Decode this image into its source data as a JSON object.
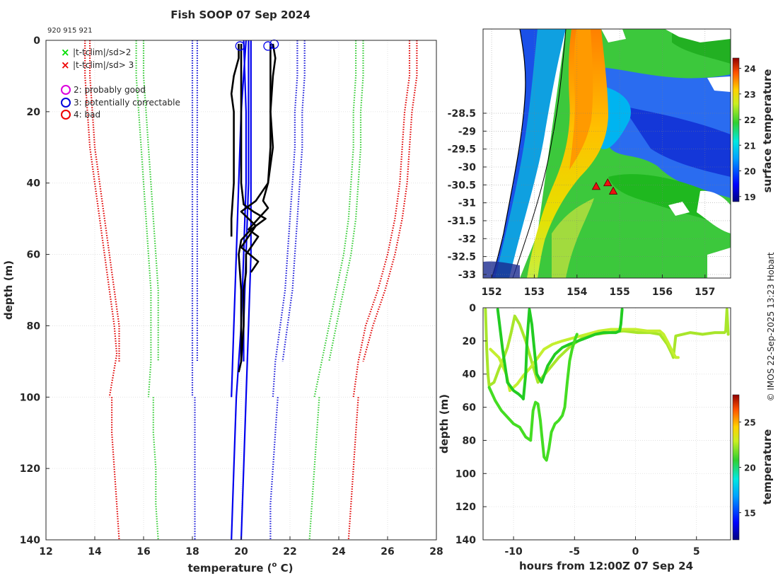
{
  "title": "Fish SOOP 07 Sep 2024",
  "station_ids": "920 915 921",
  "watermark": "© IMOS 22-Sep-2025 13:23 Hobart",
  "chart_data": [
    {
      "id": "profiles",
      "type": "line",
      "title": "Fish SOOP 07 Sep 2024",
      "xlabel": "temperature (",
      "xlabel_sup": "o",
      "xlabel_tail": " C)",
      "ylabel": "depth (m)",
      "xlim": [
        12,
        28
      ],
      "ylim": [
        140,
        0
      ],
      "xticks": [
        12,
        14,
        16,
        18,
        20,
        22,
        24,
        26,
        28
      ],
      "yticks": [
        0,
        20,
        40,
        60,
        80,
        100,
        120,
        140
      ],
      "legend": [
        {
          "marker": "x",
          "color": "#00dd00",
          "label": "|t-tclim|/sd>2"
        },
        {
          "marker": "x",
          "color": "#ee0000",
          "label": "|t-tclim|/sd> 3"
        },
        {
          "marker": "o",
          "color": "#dd00dd",
          "label": "2: probably good"
        },
        {
          "marker": "o",
          "color": "#0000dd",
          "label": "3: potentially correctable"
        },
        {
          "marker": "o",
          "color": "#ee0000",
          "label": "4: bad"
        }
      ],
      "climatology_envelopes": [
        {
          "color": "#e00000",
          "style": "dotted",
          "depth": [
            0,
            10,
            20,
            30,
            40,
            50,
            60,
            70,
            80,
            88,
            100
          ],
          "temp": [
            13.6,
            13.6,
            13.7,
            13.8,
            14.0,
            14.2,
            14.4,
            14.6,
            14.8,
            14.9,
            14.6
          ]
        },
        {
          "color": "#e00000",
          "style": "dotted",
          "depth": [
            0,
            10,
            20,
            30,
            40,
            50,
            60,
            70,
            80,
            90
          ],
          "temp": [
            13.8,
            13.8,
            13.9,
            14.0,
            14.2,
            14.4,
            14.6,
            14.8,
            15.0,
            15.0
          ]
        },
        {
          "color": "#e00000",
          "style": "dotted",
          "depth": [
            100,
            110,
            120,
            130,
            140
          ],
          "temp": [
            14.7,
            14.7,
            14.8,
            14.9,
            15.0
          ]
        },
        {
          "color": "#e00000",
          "style": "dotted",
          "depth": [
            0,
            10,
            20,
            30,
            40,
            50,
            60,
            70,
            80,
            90,
            100
          ],
          "temp": [
            26.9,
            26.9,
            26.7,
            26.6,
            26.5,
            26.3,
            26.0,
            25.6,
            25.1,
            24.8,
            24.6
          ]
        },
        {
          "color": "#e00000",
          "style": "dotted",
          "depth": [
            0,
            10,
            20,
            30,
            40,
            50,
            60,
            70,
            80,
            90
          ],
          "temp": [
            27.2,
            27.2,
            27.0,
            26.9,
            26.8,
            26.6,
            26.3,
            25.9,
            25.4,
            25.0
          ]
        },
        {
          "color": "#e00000",
          "style": "dotted",
          "depth": [
            100,
            110,
            120,
            130,
            140
          ],
          "temp": [
            24.8,
            24.7,
            24.6,
            24.5,
            24.4
          ]
        },
        {
          "color": "#33cc33",
          "style": "dotted",
          "depth": [
            0,
            10,
            20,
            30,
            40,
            50,
            60,
            70,
            80,
            90,
            100
          ],
          "temp": [
            15.7,
            15.7,
            15.8,
            15.9,
            16.0,
            16.1,
            16.2,
            16.3,
            16.3,
            16.3,
            16.2
          ]
        },
        {
          "color": "#33cc33",
          "style": "dotted",
          "depth": [
            0,
            10,
            20,
            30,
            40,
            50,
            60,
            70,
            80,
            90
          ],
          "temp": [
            16.0,
            16.0,
            16.1,
            16.2,
            16.3,
            16.4,
            16.5,
            16.6,
            16.6,
            16.6
          ]
        },
        {
          "color": "#33cc33",
          "style": "dotted",
          "depth": [
            100,
            110,
            120,
            130,
            140
          ],
          "temp": [
            16.4,
            16.4,
            16.5,
            16.5,
            16.6
          ]
        },
        {
          "color": "#33cc33",
          "style": "dotted",
          "depth": [
            0,
            10,
            20,
            30,
            40,
            50,
            60,
            70,
            80,
            90,
            100
          ],
          "temp": [
            24.7,
            24.7,
            24.6,
            24.6,
            24.5,
            24.4,
            24.2,
            23.9,
            23.6,
            23.3,
            23.0
          ]
        },
        {
          "color": "#33cc33",
          "style": "dotted",
          "depth": [
            0,
            10,
            20,
            30,
            40,
            50,
            60,
            70,
            80,
            90
          ],
          "temp": [
            25.0,
            25.0,
            24.9,
            24.9,
            24.8,
            24.7,
            24.5,
            24.2,
            23.9,
            23.6
          ]
        },
        {
          "color": "#33cc33",
          "style": "dotted",
          "depth": [
            100,
            110,
            120,
            130,
            140
          ],
          "temp": [
            23.2,
            23.1,
            23.0,
            22.9,
            22.8
          ]
        },
        {
          "color": "#1a1ad9",
          "style": "dotted",
          "depth": [
            0,
            10,
            20,
            30,
            40,
            50,
            60,
            70,
            80,
            90,
            100
          ],
          "temp": [
            18.0,
            18.0,
            18.0,
            18.0,
            18.0,
            18.0,
            18.0,
            18.0,
            18.0,
            18.0,
            18.0
          ]
        },
        {
          "color": "#1a1ad9",
          "style": "dotted",
          "depth": [
            0,
            10,
            20,
            30,
            40,
            50,
            60,
            70,
            80,
            90
          ],
          "temp": [
            18.2,
            18.2,
            18.2,
            18.2,
            18.2,
            18.2,
            18.2,
            18.2,
            18.2,
            18.2
          ]
        },
        {
          "color": "#1a1ad9",
          "style": "dotted",
          "depth": [
            100,
            110,
            120,
            130,
            140
          ],
          "temp": [
            18.1,
            18.1,
            18.1,
            18.1,
            18.1
          ]
        },
        {
          "color": "#1a1ad9",
          "style": "dotted",
          "depth": [
            0,
            10,
            20,
            30,
            40,
            50,
            60,
            70,
            80,
            90,
            100
          ],
          "temp": [
            22.3,
            22.3,
            22.2,
            22.2,
            22.1,
            22.0,
            21.9,
            21.8,
            21.6,
            21.4,
            21.3
          ]
        },
        {
          "color": "#1a1ad9",
          "style": "dotted",
          "depth": [
            0,
            10,
            20,
            30,
            40,
            50,
            60,
            70,
            80,
            90
          ],
          "temp": [
            22.6,
            22.6,
            22.5,
            22.5,
            22.4,
            22.3,
            22.2,
            22.1,
            21.9,
            21.7
          ]
        },
        {
          "color": "#1a1ad9",
          "style": "dotted",
          "depth": [
            100,
            110,
            120,
            130,
            140
          ],
          "temp": [
            21.5,
            21.4,
            21.3,
            21.2,
            21.2
          ]
        }
      ],
      "mean_profiles": [
        {
          "color": "#0000ee",
          "depth": [
            0,
            20,
            40,
            60,
            80,
            100,
            120,
            140
          ],
          "temp": [
            20.1,
            20.2,
            20.2,
            20.1,
            20.0,
            19.8,
            19.7,
            19.6
          ]
        },
        {
          "color": "#0000ee",
          "depth": [
            0,
            20,
            40,
            60,
            80,
            90
          ],
          "temp": [
            20.3,
            20.3,
            20.3,
            20.2,
            20.1,
            20.1
          ]
        },
        {
          "color": "#0000ee",
          "depth": [
            0,
            20,
            40,
            60,
            80,
            100,
            120,
            140
          ],
          "temp": [
            20.4,
            20.4,
            20.4,
            20.4,
            20.3,
            20.2,
            20.1,
            20.0
          ]
        },
        {
          "color": "#0000ee",
          "depth": [
            0,
            20,
            40,
            60,
            80,
            100
          ],
          "temp": [
            20.2,
            20.0,
            19.9,
            19.8,
            19.7,
            19.6
          ]
        }
      ],
      "observed_profiles": [
        {
          "color": "#000000",
          "depth": [
            1,
            5,
            10,
            15,
            20,
            30,
            40,
            50,
            55
          ],
          "temp": [
            19.9,
            19.9,
            19.7,
            19.6,
            19.7,
            19.7,
            19.7,
            19.6,
            19.6
          ]
        },
        {
          "color": "#000000",
          "depth": [
            1,
            10,
            20,
            30,
            40,
            46,
            48,
            50,
            53,
            56,
            60,
            70,
            80,
            90,
            93
          ],
          "temp": [
            20.0,
            20.0,
            20.0,
            20.0,
            20.0,
            20.1,
            20.5,
            21.0,
            20.4,
            20.0,
            19.9,
            20.0,
            20.0,
            20.0,
            19.9
          ]
        },
        {
          "color": "#000000",
          "depth": [
            1,
            5,
            10,
            20,
            30,
            40,
            45,
            47,
            50,
            53,
            55,
            60,
            65,
            70,
            80,
            90
          ],
          "temp": [
            21.2,
            21.2,
            21.2,
            21.2,
            21.2,
            21.1,
            20.9,
            21.1,
            20.7,
            20.3,
            20.7,
            20.2,
            20.2,
            20.1,
            20.1,
            20.0
          ]
        },
        {
          "color": "#000000",
          "depth": [
            1,
            5,
            10,
            20,
            30,
            35,
            40,
            45,
            48,
            52,
            58,
            62,
            65
          ],
          "temp": [
            21.3,
            21.4,
            21.3,
            21.2,
            21.3,
            21.2,
            21.1,
            20.6,
            20.0,
            20.6,
            20.0,
            20.7,
            20.4
          ]
        }
      ],
      "flag_circles": [
        {
          "temp": 19.95,
          "depth": 1,
          "color": "#0000ee"
        },
        {
          "temp": 21.1,
          "depth": 1,
          "color": "#0000ee"
        },
        {
          "temp": 21.35,
          "depth": 0.5,
          "color": "#0000ee"
        }
      ]
    },
    {
      "id": "sst_map",
      "type": "heatmap",
      "colorbar_label": "surface temperature",
      "colorbar_ticks": [
        19,
        20,
        21,
        22,
        23,
        24
      ],
      "clim": [
        18.8,
        24.4
      ],
      "xlim": [
        151.8,
        157.6
      ],
      "ylim": [
        -33.1,
        -26.15
      ],
      "xticks": [
        152,
        153,
        154,
        155,
        156,
        157
      ],
      "yticks": [
        -28.5,
        -29,
        -29.5,
        -30,
        -30.5,
        -31,
        -31.5,
        -32,
        -32.5,
        -33
      ],
      "stations": [
        {
          "lon": 154.45,
          "lat": -30.55
        },
        {
          "lon": 154.72,
          "lat": -30.45
        },
        {
          "lon": 154.85,
          "lat": -30.68
        }
      ]
    },
    {
      "id": "depth_time",
      "type": "scatter",
      "xlabel": "hours from 12:00Z 07 Sep 24",
      "ylabel": "depth (m)",
      "colorbar_label": "temperature",
      "colorbar_ticks": [
        15,
        20,
        25
      ],
      "clim": [
        12,
        28
      ],
      "xlim": [
        -12.5,
        7.8
      ],
      "ylim": [
        140,
        0
      ],
      "xticks": [
        -10,
        -5,
        0,
        5
      ],
      "yticks": [
        0,
        20,
        40,
        60,
        80,
        100,
        120,
        140
      ],
      "tracks": [
        {
          "color": "#a8e62a",
          "hours": [
            -12.3,
            -12.2,
            -12.1,
            -12.0,
            -11.6,
            -11.2,
            -10.8,
            -10.5,
            -10.2,
            -9.9,
            -9.5,
            -9.0,
            -8.5,
            -8.0,
            -7.2,
            -6.3,
            -5.3,
            -4.3,
            -3.3,
            -2.2,
            -1.0,
            0.2,
            1.2,
            2.0,
            2.6,
            3.0,
            3.1,
            3.3,
            4.5,
            5.5,
            6.5,
            7.3,
            7.4,
            7.5,
            7.6
          ],
          "depth": [
            1,
            25,
            40,
            47,
            45,
            37,
            30,
            24,
            15,
            5,
            10,
            20,
            33,
            45,
            38,
            30,
            23,
            18,
            16,
            15,
            14,
            15,
            15,
            16,
            22,
            28,
            30,
            17,
            15,
            16,
            15,
            15,
            14,
            1,
            16
          ]
        },
        {
          "color": "#c4ef2e",
          "hours": [
            -11.9,
            -11.2,
            -10.6,
            -10.3,
            -9.7,
            -9.2,
            -8.6,
            -8.0,
            -7.5,
            -6.8,
            -6.0,
            -5.0,
            -4.0,
            -3.0,
            -2.0,
            -1.0,
            0.0,
            1.0,
            2.0,
            2.3,
            2.6,
            3.0,
            3.3,
            3.5
          ],
          "depth": [
            25,
            30,
            40,
            50,
            46,
            41,
            36,
            30,
            25,
            22,
            20,
            18,
            16,
            14,
            13,
            13,
            13,
            14,
            14,
            16,
            20,
            26,
            30,
            30
          ]
        },
        {
          "color": "#22cc22",
          "hours": [
            -11.3,
            -10.9,
            -10.5,
            -10.0,
            -9.6,
            -9.3,
            -9.2,
            -9.0,
            -8.9,
            -8.7,
            -8.5,
            -8.1,
            -7.7,
            -7.2,
            -6.6,
            -6.0,
            -5.4,
            -4.7,
            -4.0,
            -3.3,
            -2.6,
            -2.0,
            -1.6,
            -1.3,
            -1.2,
            -1.1
          ],
          "depth": [
            1,
            25,
            45,
            50,
            52,
            54,
            55,
            40,
            20,
            1,
            10,
            40,
            45,
            35,
            28,
            24,
            22,
            20,
            18,
            16,
            15,
            15,
            15,
            14,
            10,
            1
          ]
        },
        {
          "color": "#44dd22",
          "hours": [
            -12.0,
            -11.5,
            -11.0,
            -10.5,
            -10.0,
            -9.5,
            -9.0,
            -8.6,
            -8.4,
            -8.2,
            -8.0,
            -7.8,
            -7.7,
            -7.5,
            -7.3,
            -7.1,
            -6.9,
            -6.6,
            -6.3,
            -6.0,
            -5.8,
            -5.6,
            -5.4,
            -5.2,
            -5.0,
            -4.9,
            -4.8
          ],
          "depth": [
            48,
            56,
            62,
            66,
            70,
            72,
            78,
            80,
            62,
            57,
            58,
            68,
            76,
            90,
            92,
            85,
            75,
            70,
            68,
            65,
            60,
            45,
            32,
            25,
            20,
            18,
            16
          ]
        }
      ]
    }
  ]
}
